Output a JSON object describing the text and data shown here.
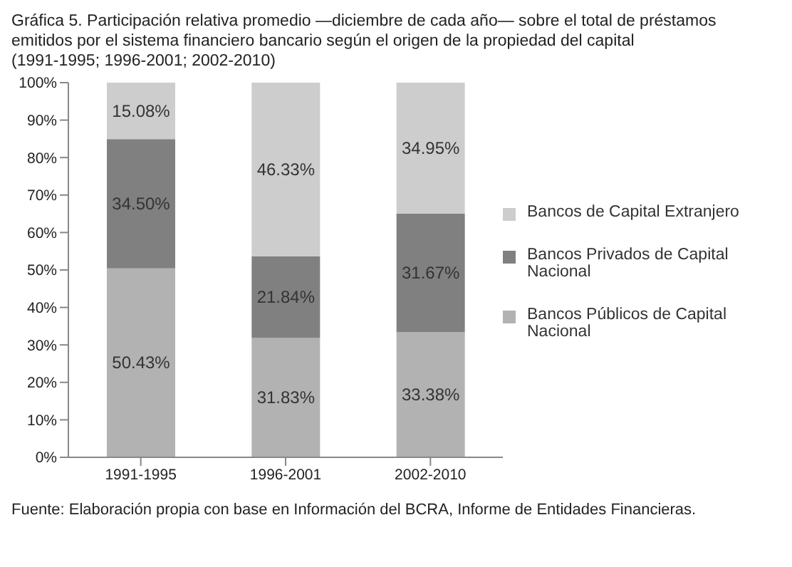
{
  "chart_data": {
    "type": "bar",
    "title": "Gráfica 5. Participación relativa promedio —diciembre de cada año— sobre el total de préstamos emitidos por el sistema financiero bancario según el origen de la propiedad del capital",
    "subtitle": "(1991-1995; 1996-2001; 2002-2010)",
    "annotations": [
      "Fuente: Elaboración propia con base en Información del BCRA, Informe de Entidades Financieras."
    ],
    "categories": [
      "1991-1995",
      "1996-2001",
      "2002-2010"
    ],
    "stacked": true,
    "series": [
      {
        "name": "Bancos Públicos de Capital Nacional",
        "color": "#b2b2b2",
        "values": [
          50.43,
          31.83,
          33.38
        ],
        "value_labels": [
          "50.43%",
          "31.83%",
          "33.38%"
        ]
      },
      {
        "name": "Bancos Privados de Capital Nacional",
        "color": "#808080",
        "values": [
          34.5,
          21.84,
          31.67
        ],
        "value_labels": [
          "34.50%",
          "21.84%",
          "31.67%"
        ]
      },
      {
        "name": "Bancos de Capital Extranjero",
        "color": "#cdcdcd",
        "values": [
          15.08,
          46.33,
          34.95
        ],
        "value_labels": [
          "15.08%",
          "46.33%",
          "34.95%"
        ]
      }
    ],
    "ylim": [
      0,
      100
    ],
    "yticks": [
      {
        "value": 0,
        "label": "0%"
      },
      {
        "value": 10,
        "label": "10%"
      },
      {
        "value": 20,
        "label": "20%"
      },
      {
        "value": 30,
        "label": "30%"
      },
      {
        "value": 40,
        "label": "40%"
      },
      {
        "value": 50,
        "label": "50%"
      },
      {
        "value": 60,
        "label": "60%"
      },
      {
        "value": 70,
        "label": "70%"
      },
      {
        "value": 80,
        "label": "80%"
      },
      {
        "value": 90,
        "label": "90%"
      },
      {
        "value": 100,
        "label": "100%"
      }
    ],
    "grid": false,
    "legend": "right"
  }
}
